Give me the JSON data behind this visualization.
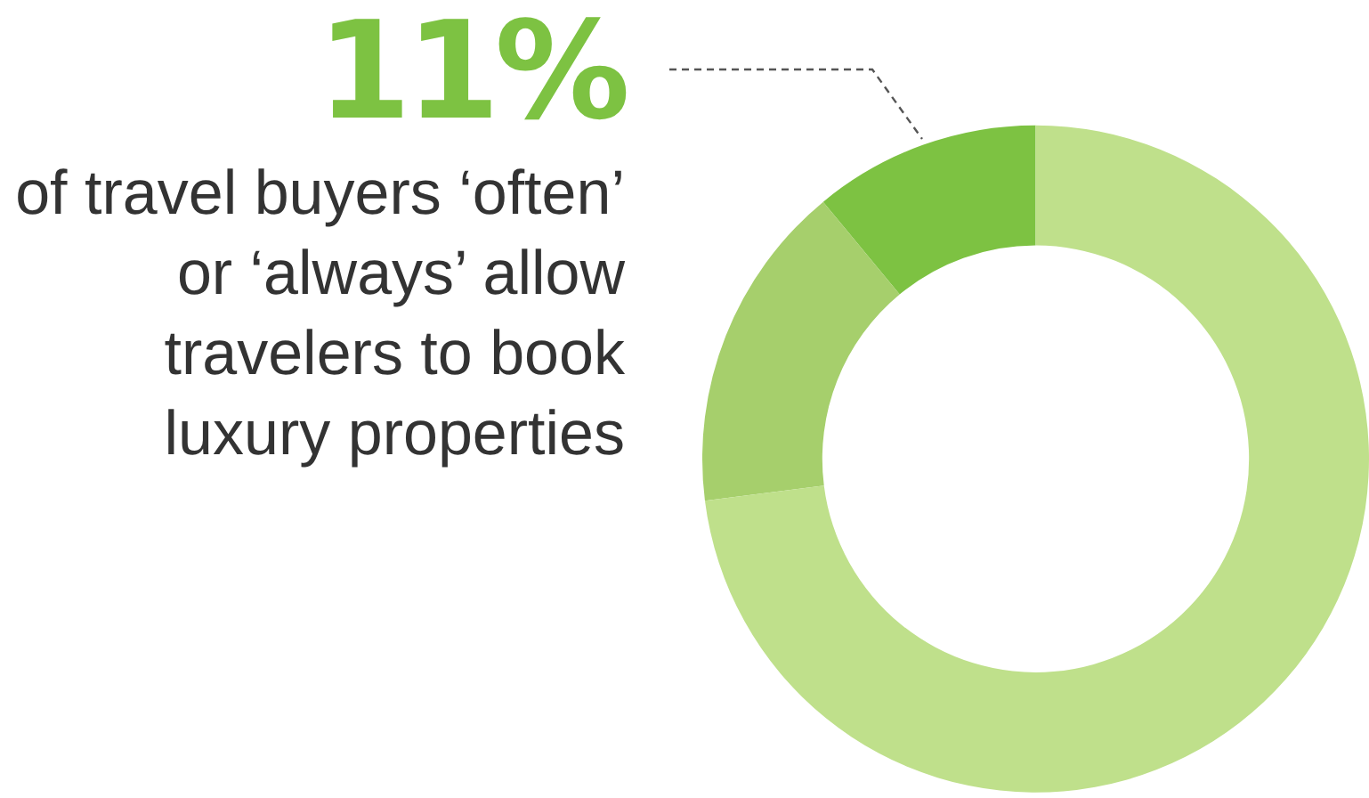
{
  "chart_data": {
    "type": "donut",
    "categories": [
      null,
      null,
      null
    ],
    "values": [
      11,
      16,
      73
    ],
    "colors": [
      "#7dc242",
      "#a6cf6c",
      "#bfe08b"
    ],
    "annotations": [
      "11%",
      "of travel buyers ‘often’ or ‘always’ allow travelers to book luxury properties"
    ],
    "legend": false
  }
}
